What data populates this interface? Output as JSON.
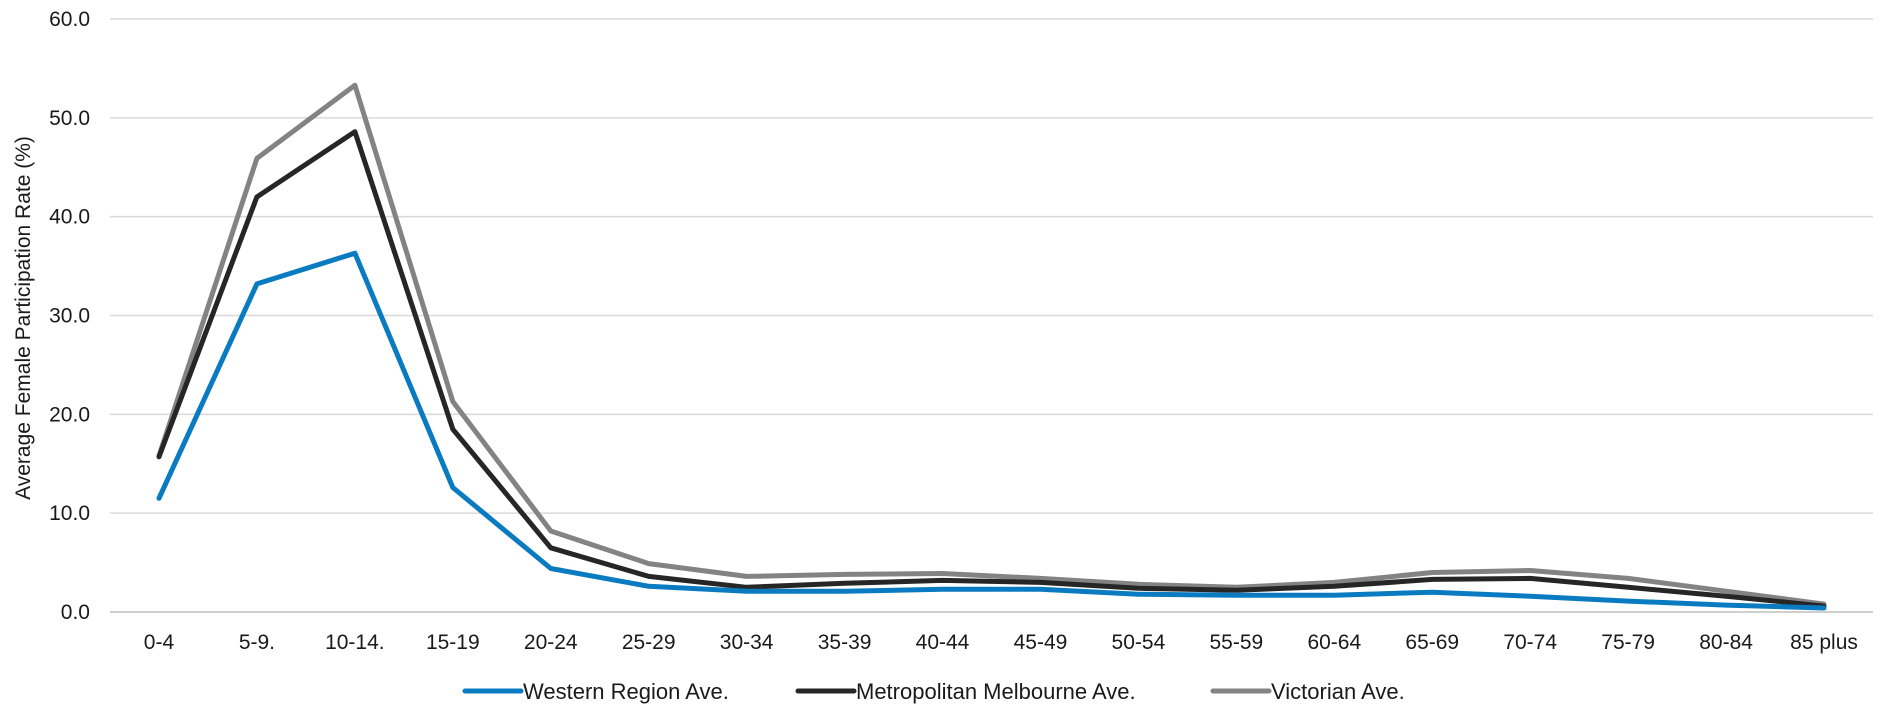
{
  "chart_data": {
    "type": "line",
    "title": "",
    "xlabel": "",
    "ylabel": "Average Female Participation Rate (%)",
    "ylim": [
      0,
      60
    ],
    "yticks": [
      "0.0",
      "10.0",
      "20.0",
      "30.0",
      "40.0",
      "50.0",
      "60.0"
    ],
    "grid": true,
    "legend_position": "bottom",
    "categories": [
      "0-4",
      "5-9.",
      "10-14.",
      "15-19",
      "20-24",
      "25-29",
      "30-34",
      "35-39",
      "40-44",
      "45-49",
      "50-54",
      "55-59",
      "60-64",
      "65-69",
      "70-74",
      "75-79",
      "80-84",
      "85 plus"
    ],
    "series": [
      {
        "name": "Western Region Ave.",
        "color": "#0a7bc1",
        "values": [
          11.5,
          33.2,
          36.3,
          12.6,
          4.4,
          2.6,
          2.1,
          2.1,
          2.3,
          2.3,
          1.8,
          1.7,
          1.7,
          2.0,
          1.6,
          1.1,
          0.7,
          0.4
        ]
      },
      {
        "name": "Metropolitan Melbourne Ave.",
        "color": "#262626",
        "values": [
          15.7,
          42.0,
          48.6,
          18.5,
          6.5,
          3.6,
          2.5,
          2.9,
          3.2,
          3.0,
          2.4,
          2.2,
          2.6,
          3.3,
          3.4,
          2.5,
          1.6,
          0.6
        ]
      },
      {
        "name": "Victorian Ave.",
        "color": "#838383",
        "values": [
          15.8,
          45.9,
          53.3,
          21.3,
          8.2,
          4.9,
          3.6,
          3.8,
          3.9,
          3.4,
          2.8,
          2.5,
          3.0,
          4.0,
          4.2,
          3.4,
          2.1,
          0.8
        ]
      }
    ]
  }
}
